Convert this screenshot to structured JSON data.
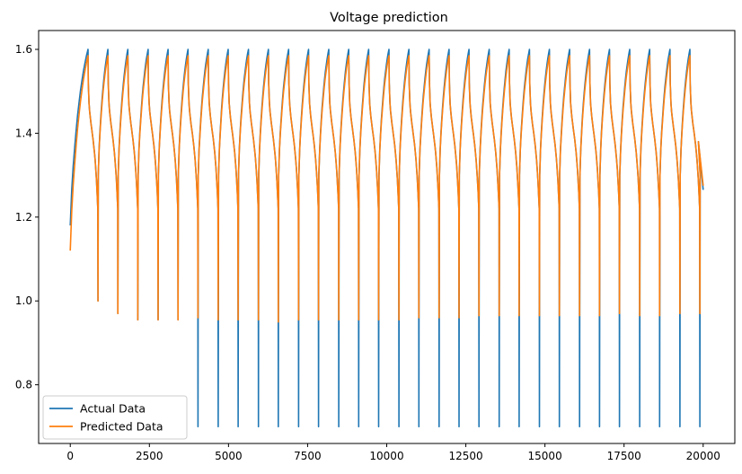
{
  "chart_data": {
    "type": "line",
    "title": "Voltage prediction",
    "xlabel": "",
    "ylabel": "",
    "xlim": [
      -1000,
      21000
    ],
    "ylim": [
      0.66,
      1.645
    ],
    "xticks": [
      0,
      2500,
      5000,
      7500,
      10000,
      12500,
      15000,
      17500,
      20000
    ],
    "xtick_labels": [
      "0",
      "2500",
      "5000",
      "7500",
      "10000",
      "12500",
      "15000",
      "17500",
      "20000"
    ],
    "yticks": [
      0.8,
      1.0,
      1.2,
      1.4,
      1.6
    ],
    "ytick_labels": [
      "0.8",
      "1.0",
      "1.2",
      "1.4",
      "1.6"
    ],
    "grid": false,
    "legend_position": "bottom-left",
    "series": [
      {
        "name": "Actual Data",
        "color": "#1f77b4",
        "start": [
          0,
          1.18
        ],
        "cycles": [
          {
            "peak_x": 560,
            "trough_x": 870,
            "min": 1.0
          },
          {
            "peak_x": 1190,
            "trough_x": 1500,
            "min": 0.97
          },
          {
            "peak_x": 1820,
            "trough_x": 2130,
            "min": 0.955
          },
          {
            "peak_x": 2460,
            "trough_x": 2770,
            "min": 0.955
          },
          {
            "peak_x": 3090,
            "trough_x": 3400,
            "min": 0.955
          },
          {
            "peak_x": 3720,
            "trough_x": 4030,
            "min": 0.7
          },
          {
            "peak_x": 4360,
            "trough_x": 4670,
            "min": 0.7
          },
          {
            "peak_x": 4990,
            "trough_x": 5300,
            "min": 0.7
          },
          {
            "peak_x": 5630,
            "trough_x": 5940,
            "min": 0.7
          },
          {
            "peak_x": 6260,
            "trough_x": 6570,
            "min": 0.7
          },
          {
            "peak_x": 6900,
            "trough_x": 7210,
            "min": 0.7
          },
          {
            "peak_x": 7530,
            "trough_x": 7840,
            "min": 0.7
          },
          {
            "peak_x": 8170,
            "trough_x": 8480,
            "min": 0.7
          },
          {
            "peak_x": 8800,
            "trough_x": 9110,
            "min": 0.7
          },
          {
            "peak_x": 9430,
            "trough_x": 9740,
            "min": 0.7
          },
          {
            "peak_x": 10070,
            "trough_x": 10380,
            "min": 0.7
          },
          {
            "peak_x": 10700,
            "trough_x": 11010,
            "min": 0.7
          },
          {
            "peak_x": 11340,
            "trough_x": 11650,
            "min": 0.7
          },
          {
            "peak_x": 11970,
            "trough_x": 12280,
            "min": 0.7
          },
          {
            "peak_x": 12600,
            "trough_x": 12910,
            "min": 0.7
          },
          {
            "peak_x": 13240,
            "trough_x": 13550,
            "min": 0.7
          },
          {
            "peak_x": 13870,
            "trough_x": 14180,
            "min": 0.7
          },
          {
            "peak_x": 14510,
            "trough_x": 14820,
            "min": 0.7
          },
          {
            "peak_x": 15140,
            "trough_x": 15450,
            "min": 0.7
          },
          {
            "peak_x": 15780,
            "trough_x": 16090,
            "min": 0.7
          },
          {
            "peak_x": 16410,
            "trough_x": 16720,
            "min": 0.7
          },
          {
            "peak_x": 17040,
            "trough_x": 17350,
            "min": 0.7
          },
          {
            "peak_x": 17680,
            "trough_x": 17990,
            "min": 0.7
          },
          {
            "peak_x": 18310,
            "trough_x": 18620,
            "min": 0.7
          },
          {
            "peak_x": 18950,
            "trough_x": 19260,
            "min": 0.7
          },
          {
            "peak_x": 19580,
            "trough_x": 19890,
            "min": 0.7
          }
        ],
        "peak": 1.6,
        "end": [
          20000,
          1.265
        ]
      },
      {
        "name": "Predicted Data",
        "color": "#ff7f0e",
        "start": [
          0,
          1.12
        ],
        "cycles": [
          {
            "peak_x": 560,
            "trough_x": 870,
            "min": 1.0
          },
          {
            "peak_x": 1190,
            "trough_x": 1500,
            "min": 0.97
          },
          {
            "peak_x": 1820,
            "trough_x": 2130,
            "min": 0.955
          },
          {
            "peak_x": 2460,
            "trough_x": 2770,
            "min": 0.955
          },
          {
            "peak_x": 3090,
            "trough_x": 3400,
            "min": 0.955
          },
          {
            "peak_x": 3720,
            "trough_x": 4030,
            "min": 0.96
          },
          {
            "peak_x": 4360,
            "trough_x": 4670,
            "min": 0.955
          },
          {
            "peak_x": 4990,
            "trough_x": 5300,
            "min": 0.955
          },
          {
            "peak_x": 5630,
            "trough_x": 5940,
            "min": 0.955
          },
          {
            "peak_x": 6260,
            "trough_x": 6570,
            "min": 0.95
          },
          {
            "peak_x": 6900,
            "trough_x": 7210,
            "min": 0.955
          },
          {
            "peak_x": 7530,
            "trough_x": 7840,
            "min": 0.955
          },
          {
            "peak_x": 8170,
            "trough_x": 8480,
            "min": 0.955
          },
          {
            "peak_x": 8800,
            "trough_x": 9110,
            "min": 0.955
          },
          {
            "peak_x": 9430,
            "trough_x": 9740,
            "min": 0.955
          },
          {
            "peak_x": 10070,
            "trough_x": 10380,
            "min": 0.955
          },
          {
            "peak_x": 10700,
            "trough_x": 11010,
            "min": 0.96
          },
          {
            "peak_x": 11340,
            "trough_x": 11650,
            "min": 0.96
          },
          {
            "peak_x": 11970,
            "trough_x": 12280,
            "min": 0.96
          },
          {
            "peak_x": 12600,
            "trough_x": 12910,
            "min": 0.965
          },
          {
            "peak_x": 13240,
            "trough_x": 13550,
            "min": 0.965
          },
          {
            "peak_x": 13870,
            "trough_x": 14180,
            "min": 0.965
          },
          {
            "peak_x": 14510,
            "trough_x": 14820,
            "min": 0.965
          },
          {
            "peak_x": 15140,
            "trough_x": 15450,
            "min": 0.965
          },
          {
            "peak_x": 15780,
            "trough_x": 16090,
            "min": 0.965
          },
          {
            "peak_x": 16410,
            "trough_x": 16720,
            "min": 0.965
          },
          {
            "peak_x": 17040,
            "trough_x": 17350,
            "min": 0.97
          },
          {
            "peak_x": 17680,
            "trough_x": 17990,
            "min": 0.965
          },
          {
            "peak_x": 18310,
            "trough_x": 18620,
            "min": 0.965
          },
          {
            "peak_x": 18950,
            "trough_x": 19260,
            "min": 0.97
          },
          {
            "peak_x": 19580,
            "trough_x": 19890,
            "min": 0.97
          }
        ],
        "peak": 1.585,
        "end": [
          20000,
          1.275
        ]
      }
    ]
  }
}
